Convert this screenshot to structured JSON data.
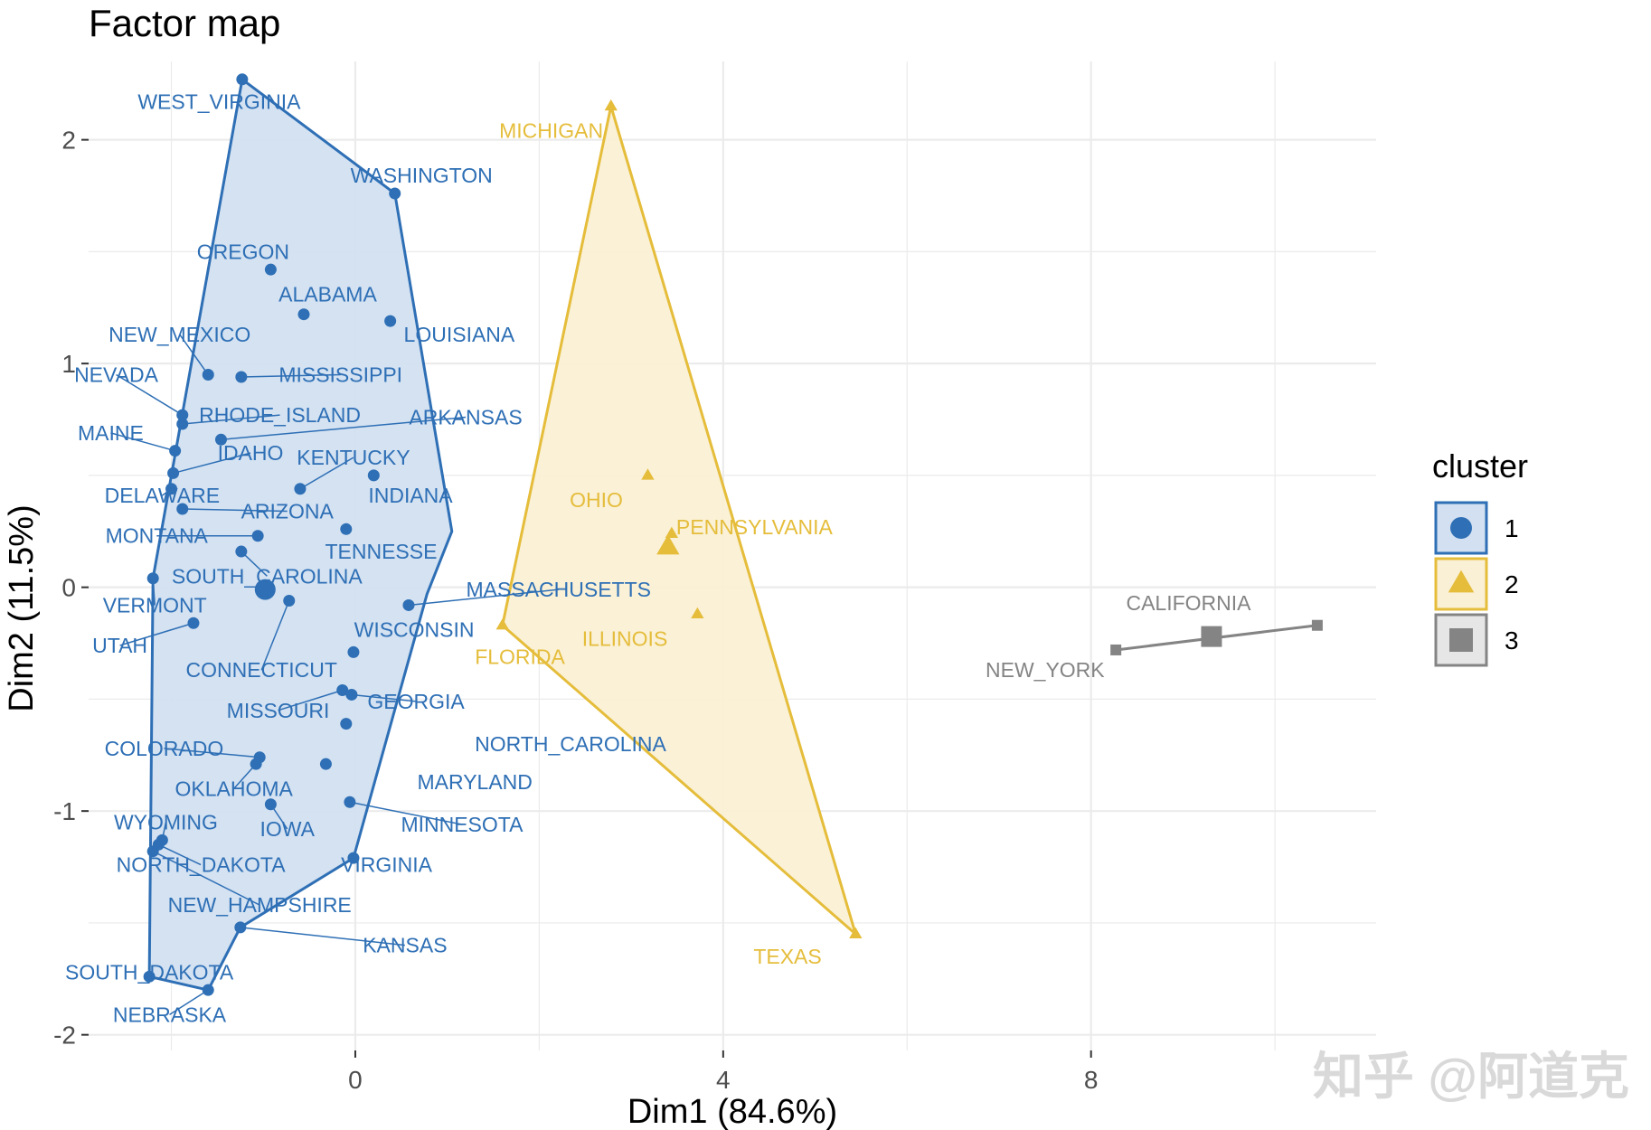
{
  "colors": {
    "cluster1": "#2E6FB5",
    "cluster1_fill": "#D2E0F1",
    "cluster2": "#E5BD3B",
    "cluster2_fill": "#FAF0D5",
    "cluster3": "#848484",
    "cluster3_fill": "#E6E6E6",
    "grid": "#EBEBEB"
  },
  "watermark": "知乎 @阿道克",
  "chart_data": {
    "type": "scatter",
    "title": "Factor map",
    "xlabel": "Dim1 (84.6%)",
    "ylabel": "Dim2 (11.5%)",
    "xlim": [
      -2.9,
      11.1
    ],
    "ylim": [
      -2.07,
      2.35
    ],
    "xticks": [
      0,
      4,
      8
    ],
    "xtick_labels": [
      "0",
      "4",
      "8"
    ],
    "yticks": [
      -2,
      -1,
      0,
      1,
      2
    ],
    "ytick_labels": [
      "-2",
      "-1",
      "0",
      "1",
      "2"
    ],
    "legend": {
      "title": "cluster",
      "position": "right",
      "entries": [
        {
          "label": "1",
          "shape": "circle",
          "cluster": 1
        },
        {
          "label": "2",
          "shape": "triangle",
          "cluster": 2
        },
        {
          "label": "3",
          "shape": "square",
          "cluster": 3
        }
      ]
    },
    "clusters": [
      {
        "id": 1,
        "shape": "circle",
        "center": [
          -0.98,
          -0.01
        ],
        "hull": [
          [
            -1.23,
            2.27
          ],
          [
            0.43,
            1.76
          ],
          [
            1.05,
            0.25
          ],
          [
            0.78,
            -0.03
          ],
          [
            -0.02,
            -1.21
          ],
          [
            -1.25,
            -1.52
          ],
          [
            -1.6,
            -1.8
          ],
          [
            -2.24,
            -1.74
          ],
          [
            -2.2,
            0.04
          ]
        ],
        "points": [
          {
            "name": "WEST_VIRGINIA",
            "x": -1.23,
            "y": 2.27,
            "lx": -1.48,
            "ly": 2.17,
            "leader": false
          },
          {
            "name": "WASHINGTON",
            "x": 0.43,
            "y": 1.76,
            "lx": 0.72,
            "ly": 1.84,
            "leader": false
          },
          {
            "name": "OREGON",
            "x": -0.92,
            "y": 1.42,
            "lx": -1.22,
            "ly": 1.5,
            "leader": false
          },
          {
            "name": "ALABAMA",
            "x": -0.56,
            "y": 1.22,
            "lx": -0.3,
            "ly": 1.31,
            "leader": false
          },
          {
            "name": "LOUISIANA",
            "x": 0.38,
            "y": 1.19,
            "lx": 1.13,
            "ly": 1.13,
            "leader": false
          },
          {
            "name": "NEW_MEXICO",
            "x": -1.6,
            "y": 0.95,
            "lx": -1.91,
            "ly": 1.13,
            "leader": true
          },
          {
            "name": "MISSISSIPPI",
            "x": -1.24,
            "y": 0.94,
            "lx": -0.16,
            "ly": 0.95,
            "leader": true
          },
          {
            "name": "NEVADA",
            "x": -1.88,
            "y": 0.77,
            "lx": -2.6,
            "ly": 0.95,
            "leader": true
          },
          {
            "name": "RHODE_ISLAND",
            "x": -1.88,
            "y": 0.73,
            "lx": -0.82,
            "ly": 0.77,
            "leader": true
          },
          {
            "name": "ARKANSAS",
            "x": -1.46,
            "y": 0.66,
            "lx": 1.2,
            "ly": 0.76,
            "leader": true
          },
          {
            "name": "MAINE",
            "x": -1.96,
            "y": 0.61,
            "lx": -2.66,
            "ly": 0.69,
            "leader": true
          },
          {
            "name": "IDAHO",
            "x": -1.98,
            "y": 0.51,
            "lx": -1.14,
            "ly": 0.6,
            "leader": true
          },
          {
            "name": "KENTUCKY",
            "x": -0.6,
            "y": 0.44,
            "lx": -0.02,
            "ly": 0.58,
            "leader": true
          },
          {
            "name": "INDIANA",
            "x": 0.2,
            "y": 0.5,
            "lx": 0.6,
            "ly": 0.41,
            "leader": false
          },
          {
            "name": "DELAWARE",
            "x": -2.0,
            "y": 0.44,
            "lx": -2.1,
            "ly": 0.41,
            "leader": true
          },
          {
            "name": "ARIZONA",
            "x": -1.88,
            "y": 0.35,
            "lx": -0.74,
            "ly": 0.34,
            "leader": true
          },
          {
            "name": "MONTANA",
            "x": -1.06,
            "y": 0.23,
            "lx": -2.16,
            "ly": 0.23,
            "leader": true
          },
          {
            "name": "TENNESSE",
            "x": -0.1,
            "y": 0.26,
            "lx": 0.28,
            "ly": 0.16,
            "leader": false
          },
          {
            "name": "SOUTH_CAROLINA",
            "x": -1.24,
            "y": 0.16,
            "lx": -0.96,
            "ly": 0.05,
            "leader": true
          },
          {
            "name": "VERMONT",
            "x": -2.2,
            "y": 0.04,
            "lx": -2.18,
            "ly": -0.08,
            "leader": true
          },
          {
            "name": "UTAH",
            "x": -1.76,
            "y": -0.16,
            "lx": -2.56,
            "ly": -0.26,
            "leader": true
          },
          {
            "name": "CONNECTICUT",
            "x": -0.72,
            "y": -0.06,
            "lx": -1.02,
            "ly": -0.37,
            "leader": true
          },
          {
            "name": "MASSACHUSETTS",
            "x": 0.58,
            "y": -0.08,
            "lx": 2.21,
            "ly": -0.01,
            "leader": true
          },
          {
            "name": "WISCONSIN",
            "x": -0.02,
            "y": -0.29,
            "lx": 0.64,
            "ly": -0.19,
            "leader": false
          },
          {
            "name": "MISSOURI",
            "x": -0.14,
            "y": -0.46,
            "lx": -0.84,
            "ly": -0.55,
            "leader": true
          },
          {
            "name": "GEORGIA",
            "x": -0.04,
            "y": -0.48,
            "lx": 0.66,
            "ly": -0.51,
            "leader": true
          },
          {
            "name": "NORTH_CAROLINA",
            "x": -0.1,
            "y": -0.61,
            "lx": 2.34,
            "ly": -0.7,
            "leader": false
          },
          {
            "name": "COLORADO",
            "x": -1.04,
            "y": -0.76,
            "lx": -2.08,
            "ly": -0.72,
            "leader": true
          },
          {
            "name": "OKLAHOMA",
            "x": -1.08,
            "y": -0.79,
            "lx": -1.32,
            "ly": -0.9,
            "leader": true
          },
          {
            "name": "MARYLAND",
            "x": -0.32,
            "y": -0.79,
            "lx": 1.3,
            "ly": -0.87,
            "leader": false
          },
          {
            "name": "MINNESOTA",
            "x": -0.06,
            "y": -0.96,
            "lx": 1.16,
            "ly": -1.06,
            "leader": true
          },
          {
            "name": "IOWA",
            "x": -0.92,
            "y": -0.97,
            "lx": -0.74,
            "ly": -1.08,
            "leader": true
          },
          {
            "name": "WYOMING",
            "x": -2.1,
            "y": -1.13,
            "lx": -2.06,
            "ly": -1.05,
            "leader": true
          },
          {
            "name": "NORTH_DAKOTA",
            "x": -2.14,
            "y": -1.15,
            "lx": -1.68,
            "ly": -1.24,
            "leader": true
          },
          {
            "name": "VIRGINIA",
            "x": -0.02,
            "y": -1.21,
            "lx": 0.34,
            "ly": -1.24,
            "leader": false
          },
          {
            "name": "NEW_HAMPSHIRE",
            "x": -2.2,
            "y": -1.18,
            "lx": -1.04,
            "ly": -1.42,
            "leader": true
          },
          {
            "name": "KANSAS",
            "x": -1.25,
            "y": -1.52,
            "lx": 0.54,
            "ly": -1.6,
            "leader": true
          },
          {
            "name": "SOUTH_DAKOTA",
            "x": -2.24,
            "y": -1.74,
            "lx": -2.24,
            "ly": -1.72,
            "leader": false
          },
          {
            "name": "NEBRASKA",
            "x": -1.6,
            "y": -1.8,
            "lx": -2.02,
            "ly": -1.91,
            "leader": true
          }
        ]
      },
      {
        "id": 2,
        "shape": "triangle",
        "center": [
          3.4,
          0.18
        ],
        "hull": [
          [
            2.78,
            2.15
          ],
          [
            5.44,
            -1.55
          ],
          [
            1.6,
            -0.17
          ]
        ],
        "points": [
          {
            "name": "MICHIGAN",
            "x": 2.78,
            "y": 2.15,
            "lx": 2.13,
            "ly": 2.04,
            "leader": false
          },
          {
            "name": "OHIO",
            "x": 3.18,
            "y": 0.5,
            "lx": 2.62,
            "ly": 0.39,
            "leader": false
          },
          {
            "name": "PENNSYLVANIA",
            "x": 3.44,
            "y": 0.24,
            "lx": 4.34,
            "ly": 0.27,
            "leader": false
          },
          {
            "name": "ILLINOIS",
            "x": 3.72,
            "y": -0.12,
            "lx": 2.93,
            "ly": -0.23,
            "leader": false
          },
          {
            "name": "FLORIDA",
            "x": 1.6,
            "y": -0.17,
            "lx": 1.79,
            "ly": -0.31,
            "leader": false
          },
          {
            "name": "TEXAS",
            "x": 5.44,
            "y": -1.55,
            "lx": 4.7,
            "ly": -1.65,
            "leader": false
          }
        ]
      },
      {
        "id": 3,
        "shape": "square",
        "center": [
          9.31,
          -0.22
        ],
        "hull": [
          [
            8.27,
            -0.28
          ],
          [
            10.46,
            -0.17
          ]
        ],
        "points": [
          {
            "name": "CALIFORNIA",
            "x": 10.46,
            "y": -0.17,
            "lx": 9.06,
            "ly": -0.07,
            "leader": false
          },
          {
            "name": "NEW_YORK",
            "x": 8.27,
            "y": -0.28,
            "lx": 7.5,
            "ly": -0.37,
            "leader": false
          }
        ]
      }
    ]
  }
}
